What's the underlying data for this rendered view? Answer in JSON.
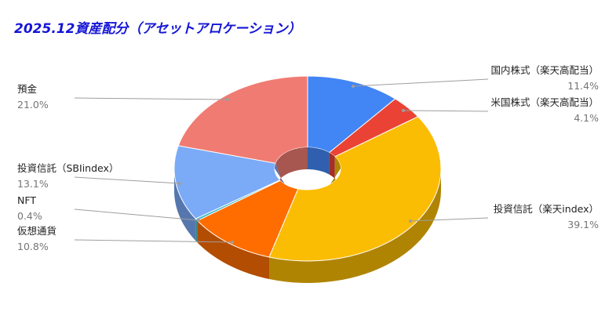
{
  "chart_data": {
    "type": "pie",
    "variant": "3d-donut",
    "title": "2025.12資産配分（アセットアロケーション）",
    "slices": [
      {
        "label": "国内株式（楽天高配当）",
        "value": 11.4,
        "value_label": "11.4%",
        "color": "#4285f4",
        "side_color": "#2f5fae"
      },
      {
        "label": "米国株式（楽天高配当）",
        "value": 4.1,
        "value_label": "4.1%",
        "color": "#ea4335",
        "side_color": "#a32f25"
      },
      {
        "label": "投資信託（楽天index）",
        "value": 39.1,
        "value_label": "39.1%",
        "color": "#fbbc04",
        "side_color": "#b08403"
      },
      {
        "label": "仮想通貨",
        "value": 10.8,
        "value_label": "10.8%",
        "color": "#ff6d01",
        "side_color": "#b34d01"
      },
      {
        "label": "NFT",
        "value": 0.4,
        "value_label": "0.4%",
        "color": "#46bdc6",
        "side_color": "#31858b"
      },
      {
        "label": "投資信託（SBIindex）",
        "value": 13.1,
        "value_label": "13.1%",
        "color": "#7baaf7",
        "side_color": "#5677ad"
      },
      {
        "label": "預金",
        "value": 21.0,
        "value_label": "21.0%",
        "color": "#f07b72",
        "side_color": "#a85650"
      }
    ]
  }
}
